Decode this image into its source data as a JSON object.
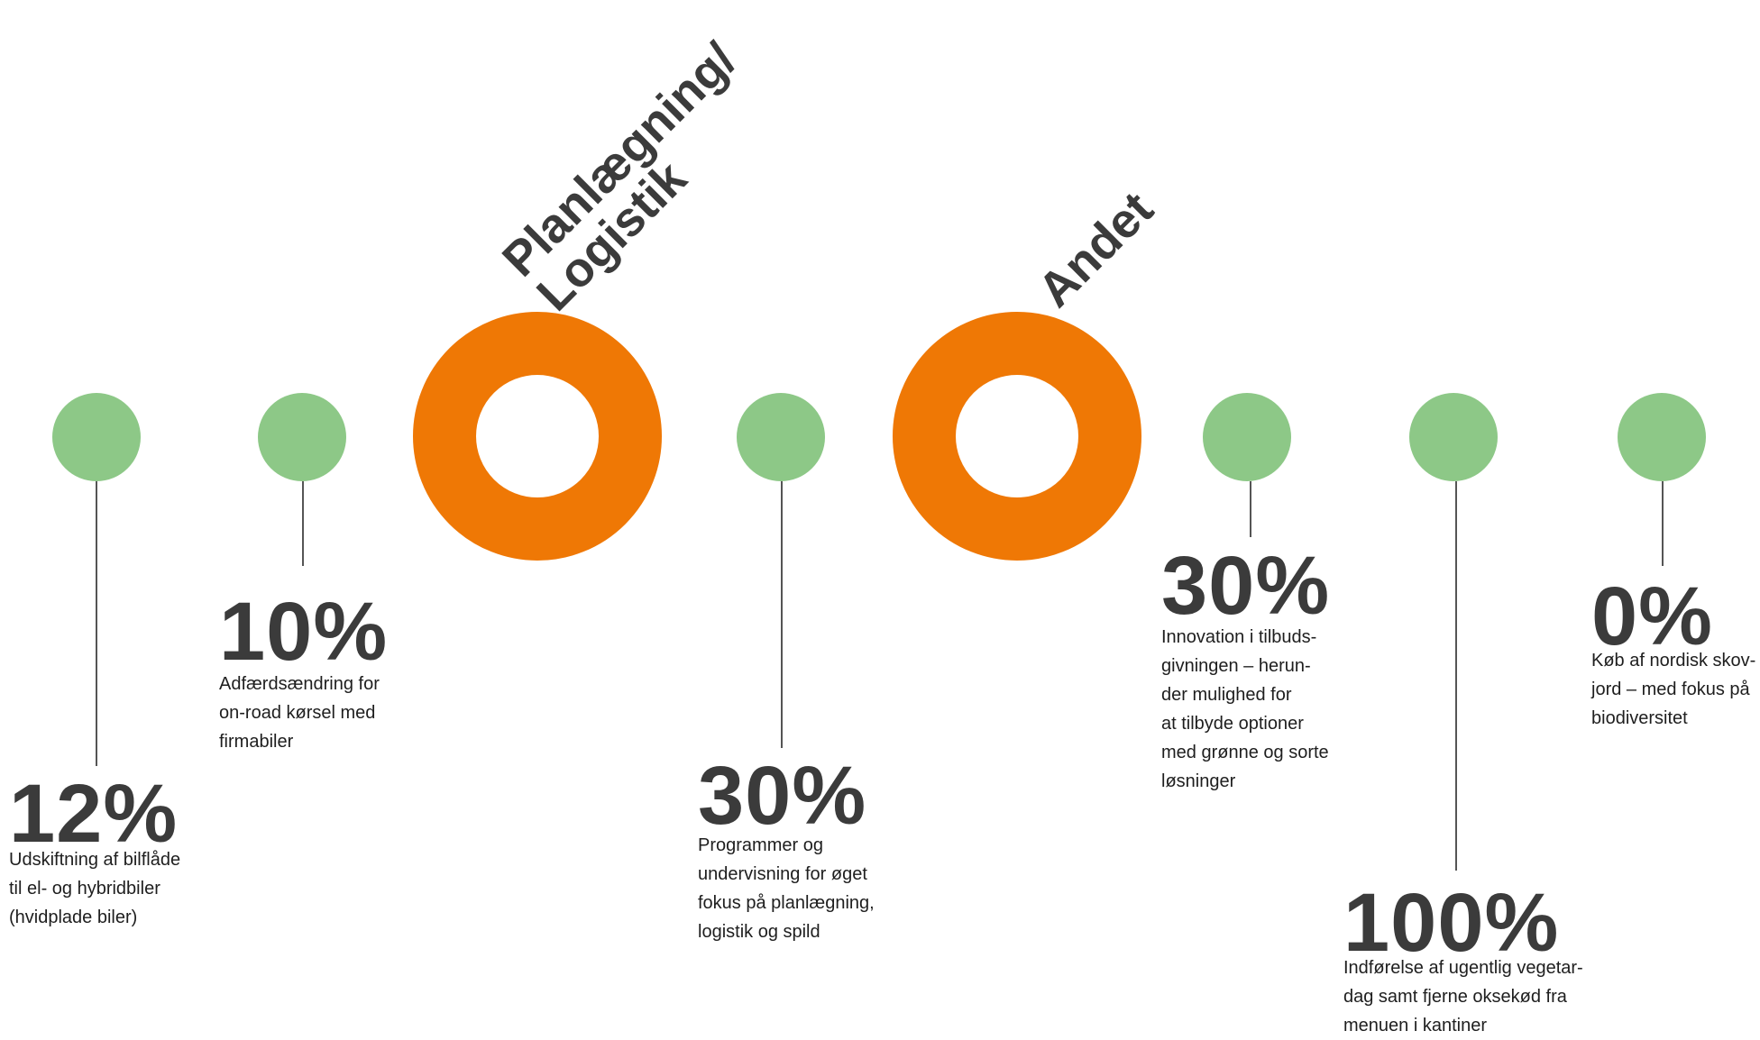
{
  "colors": {
    "dot": "#8dc887",
    "ring": "#ef7805",
    "text": "#3b3b3b",
    "line": "#555555"
  },
  "categories": {
    "planning": "Planlægning/\nLogistik",
    "other": "Andet"
  },
  "items": [
    {
      "percent": "12%",
      "text": "Udskiftning af bilflåde\ntil el- og hybridbiler\n(hvidplade biler)"
    },
    {
      "percent": "10%",
      "text": "Adfærdsændring for\non-road kørsel med\nfirmabiler"
    },
    {
      "percent": "30%",
      "text": "Programmer og\nundervisning for øget\nfokus på planlægning,\nlogistik og spild"
    },
    {
      "percent": "30%",
      "text": "Innovation i tilbuds-\ngivningen – herun-\nder mulighed for\nat tilbyde optioner\nmed grønne og sorte\nløsninger"
    },
    {
      "percent": "100%",
      "text": "Indførelse af ugentlig vegetar-\ndag samt fjerne oksekød fra\nmenuen i kantiner"
    },
    {
      "percent": "0%",
      "text": "Køb af nordisk skov-\njord – med fokus på\nbiodiversitet"
    }
  ]
}
